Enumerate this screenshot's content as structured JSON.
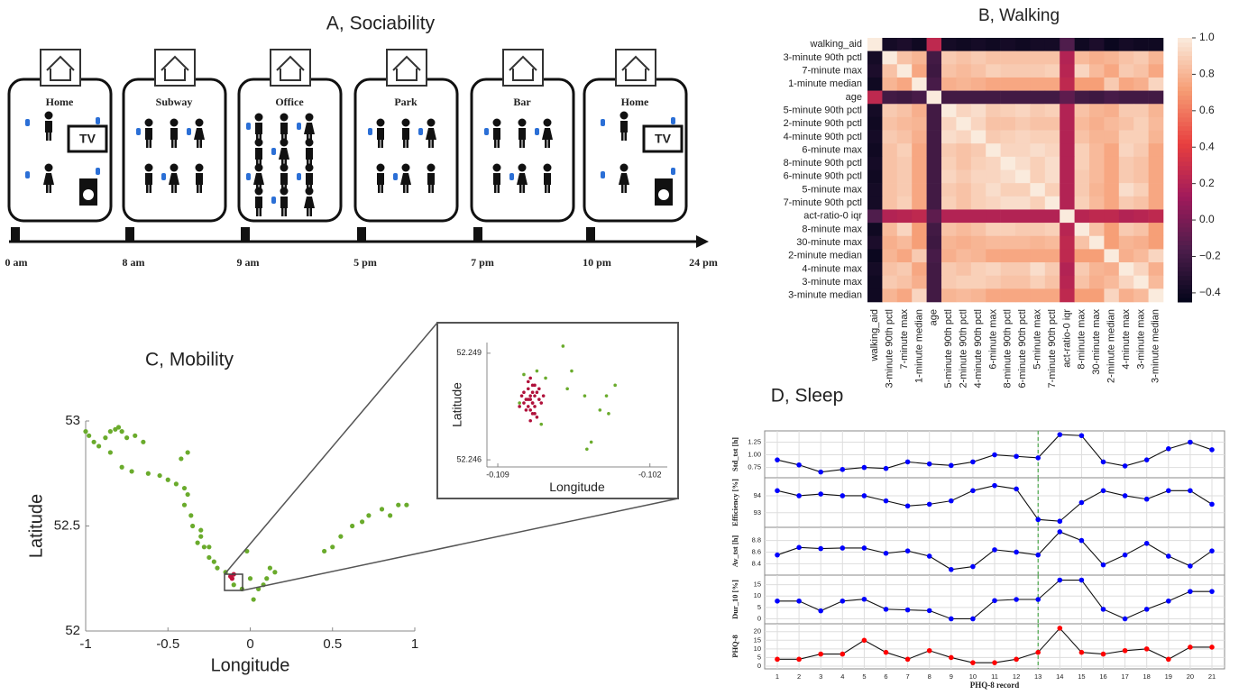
{
  "sociability": {
    "title": "A, Sociability",
    "scenes": [
      {
        "label": "Home",
        "tv": "TV"
      },
      {
        "label": "Subway"
      },
      {
        "label": "Office"
      },
      {
        "label": "Park"
      },
      {
        "label": "Bar"
      },
      {
        "label": "Home",
        "tv": "TV"
      }
    ],
    "timeline": [
      "0 am",
      "8 am",
      "9 am",
      "5 pm",
      "7 pm",
      "10 pm",
      "24 pm"
    ]
  },
  "chart_data": [
    {
      "type": "heatmap",
      "title": "B, Walking",
      "colormap": "rocket",
      "rows": [
        "walking_aid",
        "3-minute 90th pctl",
        "7-minute max",
        "1-minute median",
        "age",
        "5-minute 90th pctl",
        "2-minute 90th pctl",
        "4-minute 90th pctl",
        "6-minute max",
        "8-minute 90th pctl",
        "6-minute 90th pctl",
        "5-minute max",
        "7-minute 90th pctl",
        "act-ratio-0 iqr",
        "8-minute max",
        "30-minute max",
        "2-minute median",
        "4-minute max",
        "3-minute max",
        "3-minute median"
      ],
      "columns": [
        "walking_aid",
        "3-minute 90th pctl",
        "7-minute max",
        "1-minute median",
        "age",
        "5-minute 90th pctl",
        "2-minute 90th pctl",
        "4-minute 90th pctl",
        "6-minute max",
        "8-minute 90th pctl",
        "6-minute 90th pctl",
        "5-minute max",
        "7-minute 90th pctl",
        "act-ratio-0 iqr",
        "8-minute max",
        "30-minute max",
        "2-minute median",
        "4-minute max",
        "3-minute max",
        "3-minute median"
      ],
      "values": [
        [
          1,
          -0.38,
          -0.35,
          -0.4,
          0.25,
          -0.38,
          -0.4,
          -0.38,
          -0.4,
          -0.38,
          -0.4,
          -0.38,
          -0.38,
          -0.15,
          -0.4,
          -0.35,
          -0.42,
          -0.38,
          -0.4,
          -0.4
        ],
        [
          -0.38,
          1,
          0.85,
          0.8,
          -0.2,
          0.88,
          0.85,
          0.88,
          0.85,
          0.85,
          0.85,
          0.85,
          0.85,
          0.2,
          0.82,
          0.78,
          0.8,
          0.85,
          0.88,
          0.8
        ],
        [
          -0.35,
          0.85,
          1,
          0.75,
          -0.22,
          0.85,
          0.82,
          0.85,
          0.9,
          0.88,
          0.88,
          0.88,
          0.9,
          0.22,
          0.92,
          0.82,
          0.75,
          0.88,
          0.85,
          0.75
        ],
        [
          -0.4,
          0.8,
          0.75,
          1,
          -0.18,
          0.78,
          0.8,
          0.78,
          0.75,
          0.75,
          0.75,
          0.75,
          0.75,
          0.25,
          0.72,
          0.72,
          0.88,
          0.75,
          0.78,
          0.92
        ],
        [
          0.25,
          -0.2,
          -0.22,
          -0.18,
          1,
          -0.2,
          -0.2,
          -0.2,
          -0.2,
          -0.2,
          -0.2,
          -0.2,
          -0.2,
          -0.1,
          -0.2,
          -0.22,
          -0.18,
          -0.2,
          -0.2,
          -0.2
        ],
        [
          -0.38,
          0.88,
          0.85,
          0.78,
          -0.2,
          1,
          0.92,
          0.95,
          0.88,
          0.9,
          0.92,
          0.88,
          0.9,
          0.2,
          0.85,
          0.8,
          0.78,
          0.88,
          0.88,
          0.8
        ],
        [
          -0.4,
          0.85,
          0.82,
          0.8,
          -0.2,
          0.92,
          1,
          0.92,
          0.85,
          0.85,
          0.88,
          0.85,
          0.85,
          0.2,
          0.82,
          0.78,
          0.82,
          0.85,
          0.9,
          0.82
        ],
        [
          -0.38,
          0.88,
          0.85,
          0.78,
          -0.2,
          0.95,
          0.92,
          1,
          0.88,
          0.9,
          0.92,
          0.9,
          0.9,
          0.2,
          0.85,
          0.8,
          0.8,
          0.9,
          0.9,
          0.8
        ],
        [
          -0.4,
          0.85,
          0.9,
          0.75,
          -0.2,
          0.88,
          0.85,
          0.88,
          1,
          0.92,
          0.92,
          0.95,
          0.92,
          0.2,
          0.9,
          0.82,
          0.75,
          0.92,
          0.88,
          0.75
        ],
        [
          -0.38,
          0.85,
          0.88,
          0.75,
          -0.2,
          0.9,
          0.85,
          0.9,
          0.92,
          1,
          0.95,
          0.9,
          0.95,
          0.2,
          0.9,
          0.82,
          0.75,
          0.88,
          0.85,
          0.75
        ],
        [
          -0.4,
          0.85,
          0.88,
          0.75,
          -0.2,
          0.92,
          0.88,
          0.92,
          0.92,
          0.95,
          1,
          0.9,
          0.95,
          0.2,
          0.88,
          0.82,
          0.75,
          0.88,
          0.85,
          0.75
        ],
        [
          -0.38,
          0.85,
          0.88,
          0.75,
          -0.2,
          0.88,
          0.85,
          0.9,
          0.95,
          0.9,
          0.9,
          1,
          0.9,
          0.2,
          0.88,
          0.8,
          0.75,
          0.95,
          0.9,
          0.75
        ],
        [
          -0.38,
          0.85,
          0.9,
          0.75,
          -0.2,
          0.9,
          0.85,
          0.9,
          0.92,
          0.95,
          0.95,
          0.9,
          1,
          0.2,
          0.9,
          0.82,
          0.75,
          0.88,
          0.85,
          0.75
        ],
        [
          -0.15,
          0.2,
          0.22,
          0.25,
          -0.1,
          0.2,
          0.2,
          0.2,
          0.2,
          0.2,
          0.2,
          0.2,
          0.2,
          1,
          0.22,
          0.25,
          0.25,
          0.2,
          0.22,
          0.25
        ],
        [
          -0.4,
          0.82,
          0.92,
          0.72,
          -0.2,
          0.85,
          0.82,
          0.85,
          0.9,
          0.9,
          0.88,
          0.88,
          0.9,
          0.22,
          1,
          0.85,
          0.72,
          0.88,
          0.85,
          0.72
        ],
        [
          -0.35,
          0.78,
          0.82,
          0.72,
          -0.22,
          0.8,
          0.78,
          0.8,
          0.82,
          0.82,
          0.82,
          0.8,
          0.82,
          0.25,
          0.85,
          1,
          0.72,
          0.8,
          0.78,
          0.72
        ],
        [
          -0.42,
          0.8,
          0.75,
          0.88,
          -0.18,
          0.78,
          0.82,
          0.8,
          0.75,
          0.75,
          0.75,
          0.75,
          0.75,
          0.25,
          0.72,
          0.72,
          1,
          0.78,
          0.82,
          0.92
        ],
        [
          -0.38,
          0.85,
          0.88,
          0.75,
          -0.2,
          0.88,
          0.85,
          0.9,
          0.92,
          0.88,
          0.88,
          0.95,
          0.88,
          0.2,
          0.88,
          0.8,
          0.78,
          1,
          0.92,
          0.78
        ],
        [
          -0.4,
          0.88,
          0.85,
          0.78,
          -0.2,
          0.88,
          0.9,
          0.9,
          0.88,
          0.85,
          0.85,
          0.9,
          0.85,
          0.22,
          0.85,
          0.78,
          0.82,
          0.92,
          1,
          0.82
        ],
        [
          -0.4,
          0.8,
          0.75,
          0.92,
          -0.2,
          0.8,
          0.82,
          0.8,
          0.75,
          0.75,
          0.75,
          0.75,
          0.75,
          0.25,
          0.72,
          0.72,
          0.92,
          0.78,
          0.82,
          1
        ]
      ],
      "clim": [
        -0.45,
        1.0
      ],
      "cticks": [
        {
          "value": 1,
          "label": "1.0"
        },
        0.8,
        0.6,
        0.4,
        0.2,
        {
          "value": 0,
          "label": "0.0"
        },
        {
          "value": -0.2,
          "label": "−0.2"
        },
        {
          "value": -0.4,
          "label": "−0.4"
        }
      ]
    },
    {
      "type": "scatter",
      "title": "C, Mobility",
      "xlabel": "Longitude",
      "ylabel": "Latitude",
      "xlim": [
        -1,
        1
      ],
      "ylim": [
        52,
        53
      ],
      "xticks": [
        -1,
        -0.5,
        0,
        0.5,
        1
      ],
      "yticks": [
        52,
        52.5,
        53
      ],
      "series": [
        {
          "color": "#6aab2c",
          "x": [
            -1,
            -0.98,
            -0.95,
            -0.92,
            -0.88,
            -0.85,
            -0.82,
            -0.8,
            -0.78,
            -0.75,
            -0.7,
            -0.65,
            -0.85,
            -0.78,
            -0.72,
            -0.62,
            -0.55,
            -0.5,
            -0.45,
            -0.4,
            -0.38,
            -0.4,
            -0.36,
            -0.35,
            -0.3,
            -0.32,
            -0.28,
            -0.25,
            -0.22,
            -0.2,
            -0.15,
            -0.1,
            -0.05,
            0,
            0.02,
            0.05,
            0.08,
            0.1,
            0.15,
            -0.02,
            0.12,
            0.45,
            0.5,
            0.55,
            0.62,
            0.68,
            0.72,
            0.8,
            0.85,
            0.9,
            0.95,
            -0.42,
            -0.38,
            -0.25,
            -0.3
          ],
          "y": [
            52.95,
            52.93,
            52.9,
            52.88,
            52.92,
            52.95,
            52.96,
            52.97,
            52.95,
            52.92,
            52.93,
            52.9,
            52.85,
            52.78,
            52.76,
            52.75,
            52.74,
            52.72,
            52.7,
            52.68,
            52.85,
            52.6,
            52.55,
            52.5,
            52.45,
            52.42,
            52.4,
            52.35,
            52.33,
            52.3,
            52.28,
            52.22,
            52.2,
            52.25,
            52.15,
            52.2,
            52.22,
            52.25,
            52.28,
            52.38,
            52.3,
            52.38,
            52.4,
            52.45,
            52.5,
            52.52,
            52.55,
            52.58,
            52.55,
            52.6,
            52.6,
            52.82,
            52.65,
            52.4,
            52.48
          ]
        },
        {
          "color": "#c0143c",
          "x": [
            -0.12,
            -0.11,
            -0.1
          ],
          "y": [
            52.26,
            52.25,
            52.27
          ]
        }
      ]
    },
    {
      "type": "scatter",
      "xlabel": "Longitude",
      "ylabel": "Latitude",
      "xlim": [
        -0.1095,
        -0.1012
      ],
      "ylim": [
        52.2458,
        52.2493
      ],
      "xticks": [
        -0.109,
        -0.102
      ],
      "yticks": [
        52.246,
        52.249
      ],
      "series": [
        {
          "color": "#6aab2c",
          "x": [
            -0.1078,
            -0.1072,
            -0.1068,
            -0.108,
            -0.107,
            -0.106,
            -0.1056,
            -0.1058,
            -0.105,
            -0.1036,
            -0.104,
            -0.1039,
            -0.1043,
            -0.1047,
            -0.1049
          ],
          "y": [
            52.2484,
            52.2485,
            52.2483,
            52.2476,
            52.247,
            52.2492,
            52.2485,
            52.248,
            52.2478,
            52.2481,
            52.2478,
            52.2473,
            52.2474,
            52.2465,
            52.2463
          ]
        },
        {
          "color": "#b0103a",
          "x": [
            -0.1075,
            -0.1074,
            -0.1076,
            -0.1073,
            -0.1077,
            -0.1072,
            -0.1078,
            -0.1071,
            -0.1074,
            -0.1076,
            -0.1075,
            -0.1073,
            -0.1079,
            -0.107,
            -0.1074,
            -0.1076,
            -0.1072,
            -0.1075,
            -0.1077,
            -0.1073,
            -0.1074,
            -0.1075,
            -0.1071,
            -0.1078,
            -0.1076,
            -0.1073,
            -0.1074,
            -0.1069,
            -0.108,
            -0.1075
          ],
          "y": [
            52.2478,
            52.2476,
            52.248,
            52.2475,
            52.2477,
            52.2479,
            52.2476,
            52.2477,
            52.2473,
            52.2482,
            52.2474,
            52.2481,
            52.2478,
            52.2476,
            52.2479,
            52.2475,
            52.2472,
            52.2483,
            52.2474,
            52.2478,
            52.2476,
            52.2471,
            52.248,
            52.2479,
            52.2477,
            52.2473,
            52.2481,
            52.2478,
            52.2475,
            52.2477
          ]
        }
      ]
    },
    {
      "type": "line",
      "title": "D, Sleep",
      "xlabel": "PHQ-8 record",
      "grid": true,
      "vline_x": 13,
      "vline_color": "#2a9a2a",
      "x": [
        1,
        2,
        3,
        4,
        5,
        6,
        7,
        8,
        9,
        10,
        11,
        12,
        13,
        14,
        15,
        16,
        17,
        18,
        19,
        20,
        21
      ],
      "panels": [
        {
          "ylabel": "Std_tst [h]",
          "color": "#0000ff",
          "ylim": [
            0.6,
            1.42
          ],
          "yticks": [
            0.75,
            {
              "value": 1,
              "label": "1.00"
            },
            1.25
          ],
          "values": [
            0.9,
            0.8,
            0.66,
            0.71,
            0.75,
            0.73,
            0.86,
            0.82,
            0.79,
            0.86,
            1,
            0.97,
            0.94,
            1.4,
            1.38,
            0.86,
            0.78,
            0.9,
            1.12,
            1.25,
            1.1
          ]
        },
        {
          "ylabel": "Efficiency [%]",
          "color": "#0000ff",
          "ylim": [
            92.3,
            94.9
          ],
          "yticks": [
            93,
            94
          ],
          "values": [
            94.3,
            94,
            94.1,
            94,
            94,
            93.7,
            93.4,
            93.5,
            93.7,
            94.3,
            94.6,
            94.4,
            92.6,
            92.5,
            93.6,
            94.3,
            94,
            93.8,
            94.3,
            94.3,
            93.5
          ]
        },
        {
          "ylabel": "Av_tst [h]",
          "color": "#0000ff",
          "ylim": [
            8.25,
            8.98
          ],
          "yticks": [
            8.4,
            8.6,
            8.8
          ],
          "values": [
            8.55,
            8.68,
            8.66,
            8.67,
            8.67,
            8.58,
            8.62,
            8.53,
            8.3,
            8.35,
            8.64,
            8.6,
            8.55,
            8.95,
            8.8,
            8.38,
            8.55,
            8.75,
            8.53,
            8.36,
            8.62
          ]
        },
        {
          "ylabel": "Dur_10 [%]",
          "color": "#0000ff",
          "ylim": [
            -1,
            18
          ],
          "yticks": [
            0,
            5,
            10,
            15
          ],
          "values": [
            7.8,
            7.8,
            3.5,
            7.8,
            8.6,
            4.2,
            3.9,
            3.6,
            0,
            0,
            8,
            8.5,
            8.5,
            17,
            17,
            4.2,
            0,
            4.2,
            7.8,
            12,
            12
          ]
        },
        {
          "ylabel": "PHQ-8",
          "color": "#ff0000",
          "ylim": [
            0,
            23
          ],
          "yticks": [
            0,
            5,
            10,
            15,
            20
          ],
          "values": [
            4,
            4,
            7,
            7,
            15,
            8,
            4,
            9,
            5,
            2,
            2,
            4,
            8,
            22,
            8,
            7,
            9,
            10,
            4,
            11,
            11
          ]
        }
      ]
    }
  ]
}
